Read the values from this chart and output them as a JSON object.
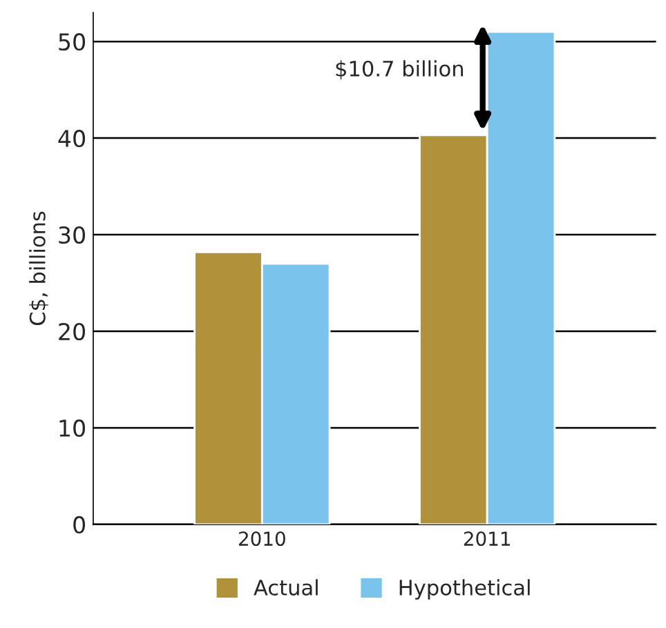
{
  "chart_data": {
    "type": "bar",
    "ylabel": "C$, billions",
    "categories": [
      "2010",
      "2011"
    ],
    "series": [
      {
        "name": "Actual",
        "color": "#b0923b",
        "values": [
          28.2,
          40.3
        ]
      },
      {
        "name": "Hypothetical",
        "color": "#7ac3ec",
        "values": [
          27.0,
          51.0
        ]
      }
    ],
    "ylim": [
      0,
      53
    ],
    "yticks": [
      0,
      10,
      20,
      30,
      40,
      50
    ],
    "grid": "y",
    "legend": "bottom",
    "annotations": [
      {
        "text": "$10.7 billion",
        "x": "2011",
        "y": 51.0
      }
    ]
  }
}
